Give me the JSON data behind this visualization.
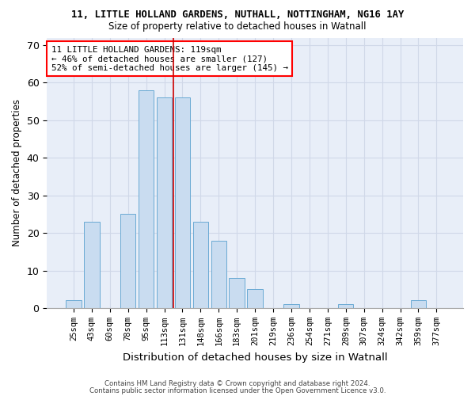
{
  "title1": "11, LITTLE HOLLAND GARDENS, NUTHALL, NOTTINGHAM, NG16 1AY",
  "title2": "Size of property relative to detached houses in Watnall",
  "xlabel": "Distribution of detached houses by size in Watnall",
  "ylabel": "Number of detached properties",
  "categories": [
    "25sqm",
    "43sqm",
    "60sqm",
    "78sqm",
    "95sqm",
    "113sqm",
    "131sqm",
    "148sqm",
    "166sqm",
    "183sqm",
    "201sqm",
    "219sqm",
    "236sqm",
    "254sqm",
    "271sqm",
    "289sqm",
    "307sqm",
    "324sqm",
    "342sqm",
    "359sqm",
    "377sqm"
  ],
  "values": [
    2,
    23,
    0,
    25,
    58,
    56,
    56,
    23,
    18,
    8,
    5,
    0,
    1,
    0,
    0,
    1,
    0,
    0,
    0,
    2,
    0
  ],
  "bar_color": "#c9dcf0",
  "bar_edge_color": "#6aaad4",
  "vline_color": "#cc0000",
  "vline_position": 5.5,
  "annotation_line1": "11 LITTLE HOLLAND GARDENS: 119sqm",
  "annotation_line2": "← 46% of detached houses are smaller (127)",
  "annotation_line3": "52% of semi-detached houses are larger (145) →",
  "ylim": [
    0,
    72
  ],
  "yticks": [
    0,
    10,
    20,
    30,
    40,
    50,
    60,
    70
  ],
  "grid_color": "#d0d8e8",
  "background_color": "#e8eef8",
  "footer1": "Contains HM Land Registry data © Crown copyright and database right 2024.",
  "footer2": "Contains public sector information licensed under the Open Government Licence v3.0."
}
